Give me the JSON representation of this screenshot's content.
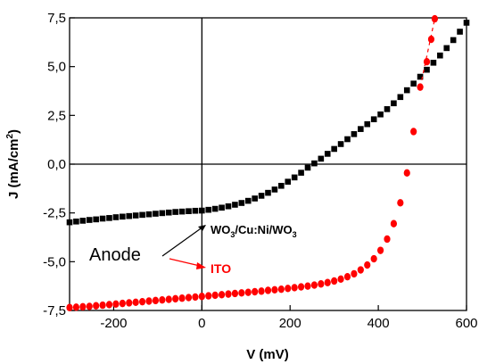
{
  "chart_data": {
    "type": "scatter",
    "xlabel": "V (mV)",
    "ylabel": "J (mA/cm2)",
    "ylabel_parts": {
      "main": "J (mA/cm",
      "sup": "2",
      "close": ")"
    },
    "xlim": [
      -300,
      600
    ],
    "ylim": [
      -7.5,
      7.5
    ],
    "x_ticks": [
      -200,
      0,
      200,
      400,
      600
    ],
    "x_tick_labels": [
      "-200",
      "0",
      "200",
      "400",
      "600"
    ],
    "y_ticks": [
      -7.5,
      -5.0,
      -2.5,
      0.0,
      2.5,
      5.0,
      7.5
    ],
    "y_tick_labels": [
      "-7,5",
      "-5,0",
      "-2,5",
      "0,0",
      "2,5",
      "5,0",
      "7,5"
    ],
    "reference_lines": {
      "x": 0,
      "y": 0
    },
    "series": [
      {
        "name": "WO3/Cu:Ni/WO3",
        "color": "#000000",
        "marker": "square",
        "x": [
          -300,
          -285,
          -270,
          -255,
          -240,
          -225,
          -210,
          -195,
          -180,
          -165,
          -150,
          -135,
          -120,
          -105,
          -90,
          -75,
          -60,
          -45,
          -30,
          -15,
          0,
          15,
          30,
          45,
          60,
          75,
          90,
          105,
          120,
          135,
          150,
          165,
          180,
          195,
          210,
          225,
          240,
          255,
          270,
          285,
          300,
          315,
          330,
          345,
          360,
          375,
          390,
          405,
          420,
          435,
          450,
          465,
          480,
          495,
          510,
          525,
          540,
          555,
          570,
          585,
          600
        ],
        "y": [
          -2.98,
          -2.94,
          -2.9,
          -2.86,
          -2.83,
          -2.79,
          -2.76,
          -2.72,
          -2.69,
          -2.66,
          -2.63,
          -2.6,
          -2.57,
          -2.54,
          -2.51,
          -2.48,
          -2.45,
          -2.43,
          -2.41,
          -2.39,
          -2.38,
          -2.34,
          -2.29,
          -2.23,
          -2.16,
          -2.08,
          -1.99,
          -1.88,
          -1.76,
          -1.62,
          -1.47,
          -1.3,
          -1.11,
          -0.9,
          -0.68,
          -0.44,
          -0.18,
          0.04,
          0.28,
          0.53,
          0.78,
          1.03,
          1.28,
          1.54,
          1.8,
          2.05,
          2.3,
          2.55,
          2.82,
          3.12,
          3.44,
          3.79,
          4.13,
          4.48,
          4.84,
          5.2,
          5.57,
          5.95,
          6.36,
          6.79,
          7.25
        ]
      },
      {
        "name": "ITO",
        "color": "#ff0000",
        "marker": "circle",
        "x": [
          -300,
          -285,
          -270,
          -255,
          -240,
          -225,
          -210,
          -195,
          -180,
          -165,
          -150,
          -135,
          -120,
          -105,
          -90,
          -75,
          -60,
          -45,
          -30,
          -15,
          0,
          15,
          30,
          45,
          60,
          75,
          90,
          105,
          120,
          135,
          150,
          165,
          180,
          195,
          210,
          225,
          240,
          255,
          270,
          285,
          300,
          315,
          330,
          345,
          360,
          375,
          390,
          405,
          420,
          435,
          450,
          465,
          480,
          495,
          510,
          520,
          528
        ],
        "y": [
          -7.35,
          -7.33,
          -7.31,
          -7.29,
          -7.26,
          -7.23,
          -7.2,
          -7.17,
          -7.14,
          -7.11,
          -7.08,
          -7.05,
          -7.02,
          -6.99,
          -6.96,
          -6.93,
          -6.9,
          -6.87,
          -6.84,
          -6.81,
          -6.78,
          -6.75,
          -6.72,
          -6.69,
          -6.66,
          -6.63,
          -6.6,
          -6.57,
          -6.54,
          -6.51,
          -6.47,
          -6.44,
          -6.41,
          -6.37,
          -6.33,
          -6.29,
          -6.25,
          -6.2,
          -6.14,
          -6.07,
          -5.99,
          -5.89,
          -5.77,
          -5.62,
          -5.42,
          -5.17,
          -4.85,
          -4.42,
          -3.84,
          -3.05,
          -1.98,
          -0.45,
          1.67,
          3.95,
          5.25,
          6.4,
          7.45
        ]
      }
    ],
    "annotations": {
      "wo3_label": {
        "main1": "WO",
        "sub1": "3",
        "main2": "/Cu:Ni/WO",
        "sub2": "3",
        "color": "#000000"
      },
      "ito_label": {
        "text": "ITO",
        "color": "#ff0000"
      },
      "anode_label": {
        "text": "Anode"
      }
    },
    "grid": false,
    "legend": "none"
  }
}
